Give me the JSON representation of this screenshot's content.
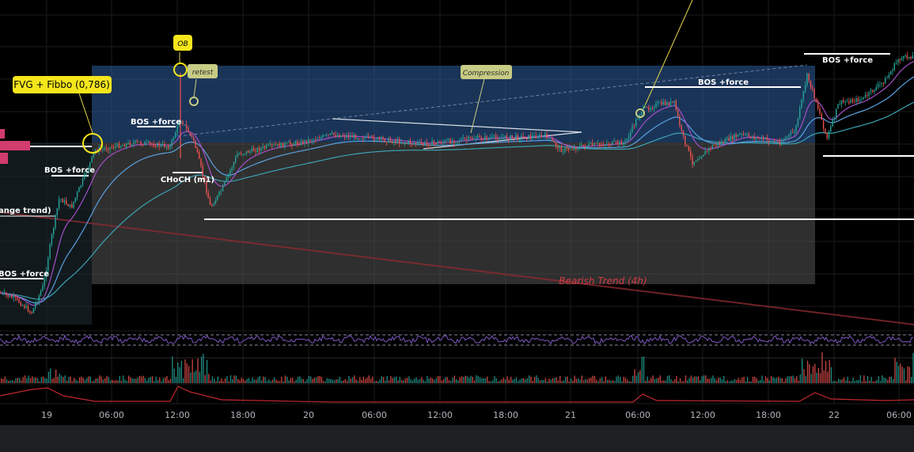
{
  "chart_data": {
    "type": "line",
    "x_tick_labels": [
      "19",
      "06:00",
      "12:00",
      "18:00",
      "20",
      "06:00",
      "12:00",
      "18:00",
      "21",
      "06:00",
      "12:00",
      "18:00",
      "22",
      "06:00"
    ],
    "annotations": {
      "fvg_fibbo": "FVG + Fibbo (0,786)",
      "ob": "OB",
      "retest": "retest",
      "compression": "Compression",
      "bearish_trend": "Bearish Trend (4h)",
      "range_trend": "ange trend)",
      "choch": "CHoCH (m1)",
      "bos_force": "BOS +force"
    },
    "colors": {
      "up": "#26a69a",
      "down": "#ef5350",
      "zone_top": "#2f5f9f",
      "zone_bottom": "#555555",
      "label_yellow": "#f5e61c",
      "label_olive": "#c8cc84",
      "bearish_trend": "#d23c46",
      "rsi": "#7e57c2"
    }
  }
}
